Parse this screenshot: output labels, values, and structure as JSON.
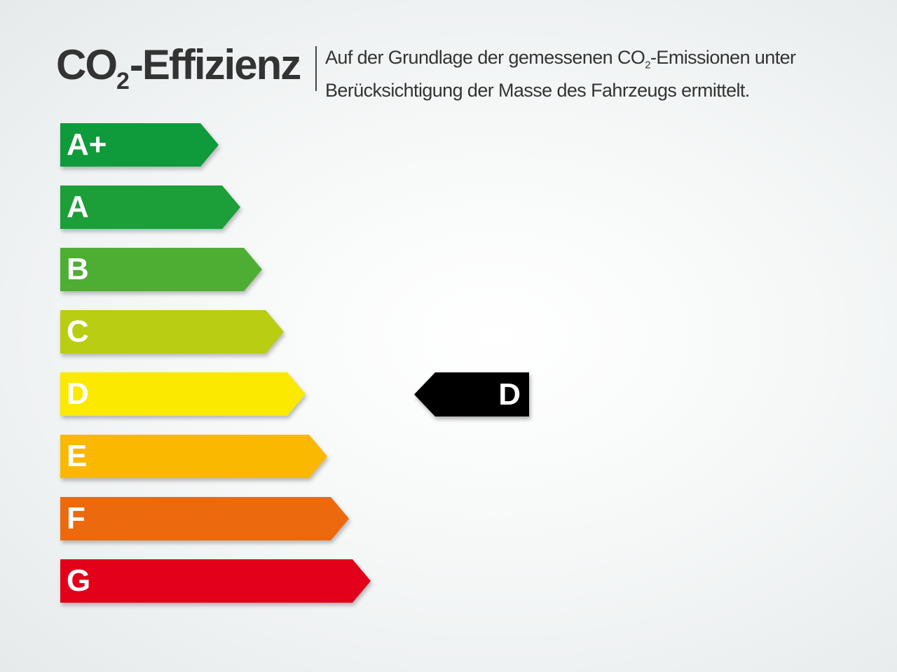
{
  "header": {
    "title_prefix": "CO",
    "title_sub": "2",
    "title_suffix": "-Effizienz",
    "desc_line1_a": "Auf der Grundlage der gemessenen CO",
    "desc_line1_sub": "2",
    "desc_line1_b": "-Emissionen unter",
    "desc_line2": "Berücksichtigung der Masse des Fahrzeugs ermittelt."
  },
  "classes": [
    {
      "label": "A+",
      "color": "#0f9a3c"
    },
    {
      "label": "A",
      "color": "#1c9e39"
    },
    {
      "label": "B",
      "color": "#4dae33"
    },
    {
      "label": "C",
      "color": "#b9cd12"
    },
    {
      "label": "D",
      "color": "#fbe900"
    },
    {
      "label": "E",
      "color": "#fbb800"
    },
    {
      "label": "F",
      "color": "#ec6a0d"
    },
    {
      "label": "G",
      "color": "#e2001a"
    }
  ],
  "indicator": {
    "label": "D",
    "color": "#000000"
  }
}
